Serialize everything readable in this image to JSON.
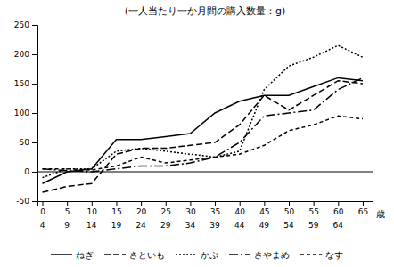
{
  "chart_data": {
    "type": "line",
    "title": "(一人当たり一か月間の購入数量：g)",
    "xlabel": "歳",
    "x": [
      0,
      5,
      10,
      15,
      20,
      25,
      30,
      35,
      40,
      45,
      50,
      55,
      60,
      65
    ],
    "xlim": [
      -1,
      67
    ],
    "xticks": [
      0,
      5,
      10,
      15,
      20,
      25,
      30,
      35,
      40,
      45,
      50,
      55,
      60,
      65
    ],
    "ylim": [
      -50,
      250
    ],
    "yticks": [
      -50,
      0,
      50,
      100,
      150,
      200,
      250
    ],
    "annotations": [
      {
        "text": "4",
        "x": 0
      },
      {
        "text": "9",
        "x": 5
      },
      {
        "text": "14",
        "x": 10
      },
      {
        "text": "19",
        "x": 15
      },
      {
        "text": "24",
        "x": 20
      },
      {
        "text": "29",
        "x": 25
      },
      {
        "text": "34",
        "x": 30
      },
      {
        "text": "39",
        "x": 35
      },
      {
        "text": "44",
        "x": 40
      },
      {
        "text": "49",
        "x": 45
      },
      {
        "text": "54",
        "x": 50
      },
      {
        "text": "59",
        "x": 55
      },
      {
        "text": "64",
        "x": 60
      }
    ],
    "hlines": [
      0
    ],
    "series": [
      {
        "name": "ねぎ",
        "color": "#000000",
        "line_style": "solid",
        "values": [
          -20,
          0,
          5,
          55,
          55,
          60,
          65,
          100,
          120,
          130,
          130,
          145,
          160,
          155
        ]
      },
      {
        "name": "さといも",
        "color": "#000000",
        "line_style": "dashed",
        "values": [
          -35,
          -25,
          -20,
          30,
          40,
          40,
          45,
          50,
          80,
          130,
          105,
          130,
          155,
          150
        ]
      },
      {
        "name": "かぶ",
        "color": "#000000",
        "line_style": "dotted",
        "values": [
          -10,
          5,
          5,
          35,
          40,
          35,
          30,
          25,
          35,
          140,
          180,
          195,
          215,
          195
        ]
      },
      {
        "name": "さやまめ",
        "color": "#000000",
        "line_style": "dashdot",
        "values": [
          5,
          2,
          0,
          5,
          10,
          10,
          15,
          25,
          50,
          95,
          100,
          105,
          140,
          160
        ]
      },
      {
        "name": "なす",
        "color": "#000000",
        "line_style": "shortdash",
        "values": [
          5,
          5,
          3,
          10,
          25,
          15,
          20,
          25,
          30,
          45,
          70,
          80,
          95,
          90
        ]
      }
    ],
    "legend": "bottom",
    "grid": false
  }
}
